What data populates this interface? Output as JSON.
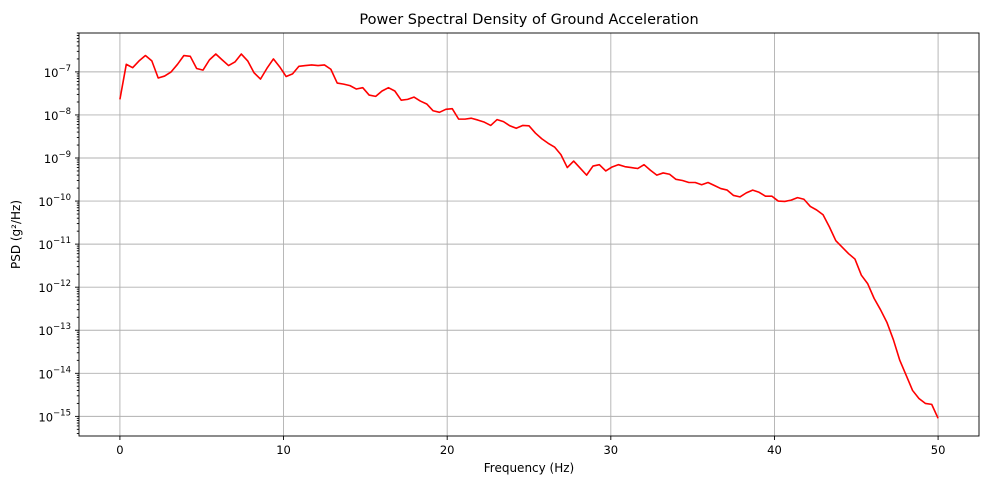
{
  "chart_data": {
    "type": "line",
    "title": "Power Spectral Density of Ground Acceleration",
    "xlabel": "Frequency (Hz)",
    "ylabel": "PSD (g²/Hz)",
    "xlim": [
      -2.5,
      52.5
    ],
    "ylim": [
      3.5e-16,
      8e-07
    ],
    "yscale": "log",
    "grid": true,
    "x_ticks": [
      0,
      10,
      20,
      30,
      40,
      50
    ],
    "x_tick_labels": [
      "0",
      "10",
      "20",
      "30",
      "40",
      "50"
    ],
    "y_ticks": [
      1e-15,
      1e-14,
      1e-13,
      1e-12,
      1e-11,
      1e-10,
      1e-09,
      1e-08,
      1e-07
    ],
    "y_tick_labels": [
      {
        "base": "10",
        "exp": "−15"
      },
      {
        "base": "10",
        "exp": "−14"
      },
      {
        "base": "10",
        "exp": "−13"
      },
      {
        "base": "10",
        "exp": "−12"
      },
      {
        "base": "10",
        "exp": "−11"
      },
      {
        "base": "10",
        "exp": "−10"
      },
      {
        "base": "10",
        "exp": "−9"
      },
      {
        "base": "10",
        "exp": "−8"
      },
      {
        "base": "10",
        "exp": "−7"
      }
    ],
    "series": [
      {
        "color": "#ff0000",
        "x": [
          0,
          0.39,
          0.78,
          1.17,
          1.56,
          1.95,
          2.34,
          2.73,
          3.13,
          3.52,
          3.91,
          4.3,
          4.69,
          5.08,
          5.47,
          5.86,
          6.25,
          6.64,
          7.03,
          7.42,
          7.81,
          8.2,
          8.59,
          8.98,
          9.38,
          9.77,
          10.16,
          10.55,
          10.94,
          11.33,
          11.72,
          12.11,
          12.5,
          12.89,
          13.28,
          13.67,
          14.06,
          14.45,
          14.84,
          15.23,
          15.63,
          16.02,
          16.41,
          16.8,
          17.19,
          17.58,
          17.97,
          18.36,
          18.75,
          19.14,
          19.53,
          19.92,
          20.31,
          20.7,
          21.09,
          21.48,
          21.88,
          22.27,
          22.66,
          23.05,
          23.44,
          23.83,
          24.22,
          24.61,
          25,
          25.39,
          25.78,
          26.17,
          26.56,
          26.95,
          27.34,
          27.73,
          28.13,
          28.52,
          28.91,
          29.3,
          29.69,
          30.08,
          30.47,
          30.86,
          31.25,
          31.64,
          32.03,
          32.42,
          32.81,
          33.2,
          33.59,
          33.98,
          34.38,
          34.77,
          35.16,
          35.55,
          35.94,
          36.33,
          36.72,
          37.11,
          37.5,
          37.89,
          38.28,
          38.67,
          39.06,
          39.45,
          39.84,
          40.23,
          40.63,
          41.02,
          41.41,
          41.8,
          42.19,
          42.58,
          42.97,
          43.36,
          43.75,
          44.14,
          44.53,
          44.92,
          45.31,
          45.7,
          46.09,
          46.48,
          46.88,
          47.27,
          47.66,
          48.05,
          48.44,
          48.83,
          49.22,
          49.61,
          50
        ],
        "y": [
          2.3e-08,
          1.5e-07,
          1.25e-07,
          1.8e-07,
          2.4e-07,
          1.8e-07,
          7.2e-08,
          8e-08,
          1e-07,
          1.5e-07,
          2.4e-07,
          2.3e-07,
          1.2e-07,
          1.1e-07,
          1.9e-07,
          2.6e-07,
          1.9e-07,
          1.4e-07,
          1.7e-07,
          2.6e-07,
          1.8e-07,
          9.5e-08,
          6.8e-08,
          1.2e-07,
          2e-07,
          1.3e-07,
          7.8e-08,
          9e-08,
          1.35e-07,
          1.4e-07,
          1.45e-07,
          1.4e-07,
          1.45e-07,
          1.15e-07,
          5.5e-08,
          5.2e-08,
          4.8e-08,
          4e-08,
          4.3e-08,
          2.9e-08,
          2.7e-08,
          3.6e-08,
          4.3e-08,
          3.6e-08,
          2.2e-08,
          2.3e-08,
          2.6e-08,
          2.1e-08,
          1.8e-08,
          1.25e-08,
          1.15e-08,
          1.35e-08,
          1.4e-08,
          8e-09,
          8e-09,
          8.4e-09,
          7.6e-09,
          6.8e-09,
          5.7e-09,
          7.8e-09,
          7e-09,
          5.6e-09,
          4.9e-09,
          5.7e-09,
          5.6e-09,
          3.8e-09,
          2.8e-09,
          2.2e-09,
          1.8e-09,
          1.2e-09,
          6e-10,
          8.5e-10,
          5.8e-10,
          4e-10,
          6.5e-10,
          7e-10,
          5e-10,
          6.2e-10,
          7e-10,
          6.3e-10,
          6e-10,
          5.7e-10,
          7e-10,
          5.2e-10,
          4e-10,
          4.5e-10,
          4.2e-10,
          3.2e-10,
          3e-10,
          2.7e-10,
          2.7e-10,
          2.4e-10,
          2.7e-10,
          2.3e-10,
          1.95e-10,
          1.8e-10,
          1.35e-10,
          1.25e-10,
          1.55e-10,
          1.8e-10,
          1.6e-10,
          1.3e-10,
          1.3e-10,
          1e-10,
          9.8e-11,
          1.05e-10,
          1.2e-10,
          1.1e-10,
          7.5e-11,
          6.2e-11,
          4.8e-11,
          2.5e-11,
          1.2e-11,
          8.5e-12,
          6e-12,
          4.5e-12,
          1.9e-12,
          1.2e-12,
          5.5e-13,
          3e-13,
          1.5e-13,
          6e-14,
          2e-14,
          9e-15,
          4e-15,
          2.6e-15,
          2e-15,
          1.9e-15,
          9e-16
        ]
      }
    ]
  }
}
